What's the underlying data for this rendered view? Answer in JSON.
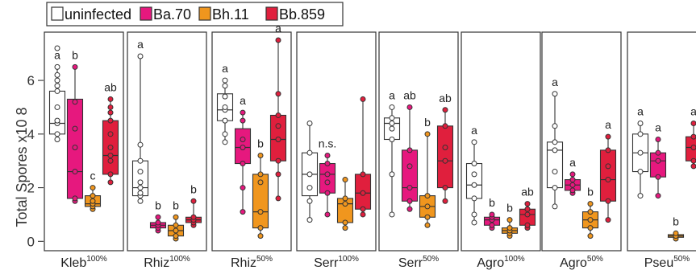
{
  "chart_data": {
    "type": "box",
    "ylabel": "Total Spores x10 8",
    "yticks": [
      0,
      2,
      4,
      6
    ],
    "ylim": [
      -0.35,
      7.8
    ],
    "legend": {
      "placement": "top-left",
      "items": [
        {
          "label": "uninfected",
          "color": "#ffffff"
        },
        {
          "label": "Ba.70",
          "color": "#e6187e"
        },
        {
          "label": "Bh.11",
          "color": "#f0961e"
        },
        {
          "label": "Bb.859",
          "color": "#e01f3d"
        }
      ]
    },
    "groups": [
      "uninfected",
      "Ba.70",
      "Bh.11",
      "Bb.859"
    ],
    "panels": [
      {
        "name": "Kleb",
        "sup": "100%",
        "boxes": [
          {
            "group": "uninfected",
            "stats": [
              3.8,
              4.0,
              4.4,
              5.6,
              6.5
            ],
            "points": [
              3.8,
              4.0,
              4.4,
              4.5,
              5.0,
              5.6,
              5.8,
              6.0,
              6.2,
              6.5,
              7.2
            ],
            "label": "a"
          },
          {
            "group": "Ba.70",
            "stats": [
              1.5,
              1.6,
              2.6,
              5.3,
              6.5
            ],
            "points": [
              1.5,
              1.6,
              2.6,
              3.5,
              4.2,
              5.2,
              6.5
            ],
            "label": "b"
          },
          {
            "group": "Bh.11",
            "stats": [
              1.2,
              1.3,
              1.4,
              1.7,
              2.0
            ],
            "points": [
              1.2,
              1.3,
              1.4,
              1.5,
              1.7,
              2.0
            ],
            "label": "c"
          },
          {
            "group": "Bb.859",
            "stats": [
              2.2,
              2.5,
              3.2,
              4.5,
              5.3
            ],
            "points": [
              2.2,
              2.5,
              3.0,
              3.2,
              3.5,
              4.0,
              4.5,
              4.8,
              5.0,
              5.3
            ],
            "label": "ab"
          }
        ]
      },
      {
        "name": "Rhiz",
        "sup": "100%",
        "boxes": [
          {
            "group": "uninfected",
            "stats": [
              1.5,
              1.7,
              2.0,
              3.0,
              6.9
            ],
            "points": [
              1.5,
              1.7,
              1.8,
              2.0,
              2.2,
              2.6,
              3.0,
              3.6,
              6.9
            ],
            "label": "a"
          },
          {
            "group": "Ba.70",
            "stats": [
              0.4,
              0.5,
              0.6,
              0.7,
              0.9
            ],
            "points": [
              0.4,
              0.5,
              0.6,
              0.7,
              0.9
            ],
            "label": "b"
          },
          {
            "group": "Bh.11",
            "stats": [
              0.1,
              0.2,
              0.4,
              0.6,
              0.9
            ],
            "points": [
              0.1,
              0.2,
              0.4,
              0.6,
              0.9
            ],
            "label": "b"
          },
          {
            "group": "Bb.859",
            "stats": [
              0.6,
              0.7,
              0.8,
              0.9,
              1.5
            ],
            "points": [
              0.6,
              0.7,
              0.8,
              0.9,
              1.5
            ],
            "label": "b"
          }
        ]
      },
      {
        "name": "Rhiz",
        "sup": "50%",
        "boxes": [
          {
            "group": "uninfected",
            "stats": [
              3.7,
              4.5,
              4.9,
              5.5,
              6.0
            ],
            "points": [
              3.7,
              4.0,
              4.5,
              4.9,
              5.0,
              5.4,
              5.8,
              6.0
            ],
            "label": "a"
          },
          {
            "group": "Ba.70",
            "stats": [
              1.1,
              2.9,
              3.5,
              4.2,
              4.8
            ],
            "points": [
              1.1,
              2.0,
              2.9,
              3.5,
              3.8,
              4.5,
              4.8
            ],
            "label": "a"
          },
          {
            "group": "Bh.11",
            "stats": [
              0.2,
              0.5,
              1.1,
              2.5,
              3.2
            ],
            "points": [
              0.2,
              0.5,
              1.1,
              2.2,
              2.5,
              3.2
            ],
            "label": "b"
          },
          {
            "group": "Bb.859",
            "stats": [
              1.6,
              3.0,
              3.8,
              4.7,
              7.5
            ],
            "points": [
              1.6,
              2.5,
              3.0,
              3.8,
              4.3,
              4.7,
              5.5,
              7.5
            ],
            "label": "a"
          }
        ]
      },
      {
        "name": "Serr",
        "sup": "100%",
        "boxes": [
          {
            "group": "uninfected",
            "stats": [
              0.8,
              1.7,
              2.5,
              3.3,
              4.4
            ],
            "points": [
              0.8,
              1.5,
              2.0,
              2.5,
              3.3,
              4.4
            ],
            "label": ""
          },
          {
            "group": "Ba.70",
            "stats": [
              1.0,
              1.8,
              2.5,
              2.9,
              3.2
            ],
            "points": [
              1.0,
              1.8,
              2.2,
              2.5,
              2.9,
              3.2
            ],
            "label": "n.s."
          },
          {
            "group": "Bh.11",
            "stats": [
              0.5,
              0.7,
              1.4,
              1.6,
              2.3
            ],
            "points": [
              0.5,
              0.7,
              1.4,
              1.6,
              2.3
            ],
            "label": ""
          },
          {
            "group": "Bb.859",
            "stats": [
              1.0,
              1.2,
              1.8,
              2.5,
              5.3
            ],
            "points": [
              1.0,
              1.2,
              1.8,
              2.5,
              5.3
            ],
            "label": ""
          }
        ]
      },
      {
        "name": "Serr",
        "sup": "50%",
        "boxes": [
          {
            "group": "uninfected",
            "stats": [
              1.0,
              3.8,
              4.4,
              4.6,
              5.0
            ],
            "points": [
              1.0,
              2.5,
              3.8,
              4.2,
              4.4,
              4.6,
              5.0
            ],
            "label": "a"
          },
          {
            "group": "Ba.70",
            "stats": [
              1.2,
              1.5,
              2.0,
              3.4,
              5.0
            ],
            "points": [
              1.2,
              1.5,
              2.0,
              2.8,
              3.4,
              5.0
            ],
            "label": "ab"
          },
          {
            "group": "Bh.11",
            "stats": [
              0.6,
              0.9,
              1.3,
              1.7,
              4.0
            ],
            "points": [
              0.6,
              0.9,
              1.3,
              1.7,
              4.0
            ],
            "label": "b"
          },
          {
            "group": "Bb.859",
            "stats": [
              1.5,
              2.0,
              3.0,
              4.3,
              4.9
            ],
            "points": [
              1.5,
              2.0,
              3.0,
              3.5,
              4.3,
              4.9
            ],
            "label": "ab"
          }
        ]
      },
      {
        "name": "Agro",
        "sup": "100%",
        "boxes": [
          {
            "group": "uninfected",
            "stats": [
              0.7,
              1.6,
              2.1,
              2.9,
              3.7
            ],
            "points": [
              0.7,
              1.0,
              1.6,
              2.1,
              2.5,
              2.9,
              3.7
            ],
            "label": "a"
          },
          {
            "group": "Ba.70",
            "stats": [
              0.5,
              0.6,
              0.8,
              0.9,
              1.0
            ],
            "points": [
              0.5,
              0.6,
              0.8,
              0.9,
              1.0
            ],
            "label": "b"
          },
          {
            "group": "Bh.11",
            "stats": [
              0.2,
              0.3,
              0.4,
              0.5,
              0.8
            ],
            "points": [
              0.2,
              0.3,
              0.4,
              0.5,
              0.8
            ],
            "label": "b"
          },
          {
            "group": "Bb.859",
            "stats": [
              0.5,
              0.6,
              1.0,
              1.2,
              1.4
            ],
            "points": [
              0.5,
              0.6,
              1.0,
              1.2,
              1.4
            ],
            "label": "ab"
          }
        ]
      },
      {
        "name": "Agro",
        "sup": "50%",
        "boxes": [
          {
            "group": "uninfected",
            "stats": [
              1.3,
              2.0,
              3.4,
              3.7,
              5.5
            ],
            "points": [
              1.3,
              2.0,
              2.6,
              3.4,
              3.7,
              4.3,
              5.5
            ],
            "label": "a"
          },
          {
            "group": "Ba.70",
            "stats": [
              1.8,
              1.9,
              2.1,
              2.3,
              2.5
            ],
            "points": [
              1.8,
              1.9,
              2.1,
              2.3,
              2.5
            ],
            "label": "a"
          },
          {
            "group": "Bh.11",
            "stats": [
              0.2,
              0.5,
              0.8,
              1.1,
              1.4
            ],
            "points": [
              0.2,
              0.5,
              0.8,
              1.1,
              1.4
            ],
            "label": "b"
          },
          {
            "group": "Bb.859",
            "stats": [
              0.8,
              1.5,
              2.3,
              3.4,
              3.9
            ],
            "points": [
              0.8,
              1.5,
              2.3,
              2.8,
              3.4,
              3.9
            ],
            "label": "a"
          }
        ]
      },
      {
        "name": "Pseu",
        "sup": "50%",
        "boxes": [
          {
            "group": "uninfected",
            "stats": [
              1.7,
              2.6,
              3.3,
              4.0,
              4.4
            ],
            "points": [
              1.7,
              2.6,
              3.3,
              4.0,
              4.4
            ],
            "label": "a"
          },
          {
            "group": "Ba.70",
            "stats": [
              1.7,
              2.4,
              3.0,
              3.3,
              3.8
            ],
            "points": [
              1.7,
              2.4,
              3.0,
              3.3,
              3.8
            ],
            "label": "a"
          },
          {
            "group": "Bh.11",
            "stats": [
              0.1,
              0.15,
              0.2,
              0.25,
              0.3
            ],
            "points": [
              0.1,
              0.2,
              0.3
            ],
            "label": "b"
          },
          {
            "group": "Bb.859",
            "stats": [
              2.8,
              3.0,
              3.5,
              3.9,
              4.4
            ],
            "points": [
              2.8,
              3.0,
              3.5,
              3.9,
              4.4
            ],
            "label": "a"
          }
        ]
      }
    ]
  }
}
